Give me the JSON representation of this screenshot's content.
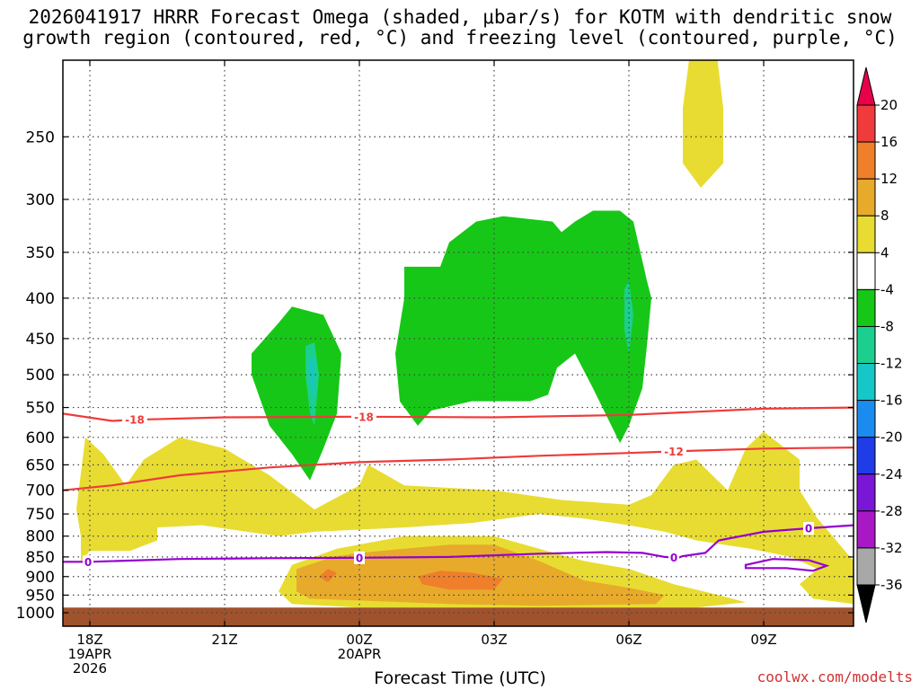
{
  "title": {
    "line1": "2026041917 HRRR Forecast Omega (shaded, μbar/s) for KOTM with dendritic snow",
    "line2": "growth region (contoured, red, °C) and freezing level (contoured, purple, °C)"
  },
  "credit": "coolwx.com/modelts",
  "colors": {
    "ground": "#a0522d",
    "dendritic_contour": "#ef3b3b",
    "freezing_contour": "#9400d3",
    "omega_pos_4_8": "#e8dc32",
    "omega_pos_8_12": "#e8aa2a",
    "omega_pos_12_16": "#ef7f2a",
    "omega_neg_4_8": "#17c717",
    "omega_neg_8_12": "#1ccf8f",
    "omega_neg_12_16": "#17c7c7"
  },
  "chart_data": {
    "type": "heatmap",
    "title": "2026041917 HRRR Forecast Omega (shaded, μbar/s) for KOTM with dendritic snow growth region (contoured, red, °C) and freezing level (contoured, purple, °C)",
    "xlabel": "Forecast Time (UTC)",
    "ylabel": "",
    "x_ticks": [
      {
        "hour": 0,
        "label": [
          "18Z",
          "19APR",
          "2026"
        ]
      },
      {
        "hour": 3,
        "label": [
          "21Z"
        ]
      },
      {
        "hour": 6,
        "label": [
          "00Z",
          "20APR"
        ]
      },
      {
        "hour": 9,
        "label": [
          "03Z"
        ]
      },
      {
        "hour": 12,
        "label": [
          "06Z"
        ]
      },
      {
        "hour": 15,
        "label": [
          "09Z"
        ]
      }
    ],
    "xlim": [
      -0.6,
      17.0
    ],
    "y_scale": "log-pressure (inverted)",
    "ylim_hPa": [
      1040,
      200
    ],
    "y_ticks": [
      250,
      300,
      350,
      400,
      450,
      500,
      550,
      600,
      650,
      700,
      750,
      800,
      850,
      900,
      950,
      1000
    ],
    "grid": true,
    "colorbar": {
      "labels": [
        20,
        16,
        12,
        8,
        4,
        -4,
        -8,
        -12,
        -16,
        -20,
        -24,
        -28,
        -32,
        -36
      ],
      "colors": [
        "#e8004a",
        "#ef3b3b",
        "#ef7f2a",
        "#e8aa2a",
        "#e8dc32",
        "#ffffff",
        "#17c717",
        "#1ccf8f",
        "#17c7c7",
        "#1a8cef",
        "#1f3ce6",
        "#7a16d6",
        "#a818c4",
        "#a8a8a8",
        "#000000"
      ]
    },
    "ground_level_hPa": 985,
    "shaded_regions": [
      {
        "name": "",
        "bin": "4 to 8",
        "color": "#e8dc32",
        "points": [
          [
            -0.6,
            862
          ],
          [
            -0.2,
            862
          ],
          [
            -0.2,
            800
          ],
          [
            -0.3,
            740
          ],
          [
            -0.1,
            600
          ],
          [
            0.3,
            630
          ],
          [
            0.8,
            690
          ],
          [
            1.2,
            640
          ],
          [
            2.0,
            600
          ],
          [
            3.0,
            620
          ],
          [
            4.0,
            670
          ],
          [
            5.0,
            740
          ],
          [
            6.0,
            690
          ],
          [
            6.2,
            650
          ],
          [
            7.0,
            690
          ],
          [
            9.0,
            700
          ],
          [
            10.5,
            720
          ],
          [
            12.0,
            730
          ],
          [
            12.5,
            710
          ],
          [
            13.0,
            650
          ],
          [
            13.5,
            640
          ],
          [
            14.2,
            700
          ],
          [
            14.6,
            620
          ],
          [
            15.0,
            590
          ],
          [
            15.8,
            640
          ],
          [
            15.8,
            700
          ],
          [
            16.2,
            760
          ],
          [
            17.0,
            860
          ],
          [
            17.0,
            975
          ],
          [
            16.1,
            960
          ],
          [
            15.8,
            920
          ],
          [
            16.2,
            880
          ],
          [
            15.6,
            850
          ],
          [
            14.7,
            830
          ],
          [
            13.5,
            810
          ],
          [
            12.8,
            790
          ],
          [
            12.0,
            775
          ],
          [
            11.0,
            760
          ],
          [
            10.0,
            750
          ],
          [
            8.5,
            770
          ],
          [
            7.0,
            780
          ],
          [
            5.0,
            790
          ],
          [
            4.2,
            800
          ],
          [
            3.5,
            790
          ],
          [
            2.5,
            775
          ],
          [
            1.5,
            780
          ],
          [
            1.5,
            810
          ],
          [
            0.9,
            835
          ],
          [
            0.0,
            835
          ],
          [
            -0.2,
            862
          ],
          [
            -0.6,
            862
          ]
        ]
      },
      {
        "name": "",
        "bin": "4 to 8",
        "color": "#e8dc32",
        "points": [
          [
            13.5,
            170
          ],
          [
            13.8,
            165
          ],
          [
            14.1,
            230
          ],
          [
            14.1,
            270
          ],
          [
            13.6,
            290
          ],
          [
            13.2,
            270
          ],
          [
            13.2,
            230
          ],
          [
            13.5,
            170
          ]
        ]
      },
      {
        "name": "",
        "bin": "4 to 8",
        "color": "#e8dc32",
        "points": [
          [
            4.5,
            870
          ],
          [
            5.5,
            830
          ],
          [
            7.0,
            800
          ],
          [
            9.0,
            800
          ],
          [
            10.0,
            830
          ],
          [
            11.0,
            860
          ],
          [
            12.0,
            880
          ],
          [
            13.0,
            920
          ],
          [
            14.0,
            950
          ],
          [
            14.6,
            970
          ],
          [
            13.5,
            985
          ],
          [
            12.0,
            985
          ],
          [
            10.0,
            985
          ],
          [
            8.0,
            985
          ],
          [
            6.0,
            985
          ],
          [
            4.5,
            975
          ],
          [
            4.2,
            940
          ],
          [
            4.5,
            870
          ]
        ]
      },
      {
        "name": "",
        "bin": "8 to 12",
        "color": "#e8aa2a",
        "points": [
          [
            4.6,
            940
          ],
          [
            4.6,
            880
          ],
          [
            5.4,
            850
          ],
          [
            6.0,
            840
          ],
          [
            7.0,
            830
          ],
          [
            8.0,
            820
          ],
          [
            9.0,
            820
          ],
          [
            10.0,
            860
          ],
          [
            11.0,
            910
          ],
          [
            12.0,
            930
          ],
          [
            12.8,
            950
          ],
          [
            12.6,
            975
          ],
          [
            10.0,
            980
          ],
          [
            8.0,
            975
          ],
          [
            6.0,
            965
          ],
          [
            4.9,
            960
          ],
          [
            4.6,
            940
          ]
        ]
      },
      {
        "name": "",
        "bin": "12 to 16",
        "color": "#ef7f2a",
        "points": [
          [
            5.1,
            900
          ],
          [
            5.3,
            880
          ],
          [
            5.5,
            890
          ],
          [
            5.3,
            915
          ],
          [
            5.1,
            900
          ]
        ]
      },
      {
        "name": "",
        "bin": "12 to 16",
        "color": "#ef7f2a",
        "points": [
          [
            7.3,
            900
          ],
          [
            7.8,
            885
          ],
          [
            8.5,
            890
          ],
          [
            9.2,
            905
          ],
          [
            9.0,
            935
          ],
          [
            8.0,
            935
          ],
          [
            7.4,
            920
          ],
          [
            7.3,
            900
          ]
        ]
      },
      {
        "name": "",
        "bin": "-4 to -8",
        "color": "#17c717",
        "points": [
          [
            3.6,
            470
          ],
          [
            4.2,
            430
          ],
          [
            4.5,
            410
          ],
          [
            5.2,
            420
          ],
          [
            5.6,
            470
          ],
          [
            5.5,
            560
          ],
          [
            5.2,
            620
          ],
          [
            4.9,
            680
          ],
          [
            4.5,
            630
          ],
          [
            4.0,
            580
          ],
          [
            3.6,
            500
          ],
          [
            3.6,
            470
          ]
        ]
      },
      {
        "name": "",
        "bin": "-4 to -8",
        "color": "#17c717",
        "points": [
          [
            7.0,
            365
          ],
          [
            7.8,
            365
          ],
          [
            8.0,
            340
          ],
          [
            8.6,
            320
          ],
          [
            9.2,
            315
          ],
          [
            10.3,
            320
          ],
          [
            10.5,
            330
          ],
          [
            10.8,
            320
          ],
          [
            11.2,
            310
          ],
          [
            11.8,
            310
          ],
          [
            12.1,
            320
          ],
          [
            12.4,
            380
          ],
          [
            12.5,
            400
          ],
          [
            12.4,
            460
          ],
          [
            12.3,
            520
          ],
          [
            12.0,
            580
          ],
          [
            11.8,
            610
          ],
          [
            11.2,
            520
          ],
          [
            10.8,
            470
          ],
          [
            10.4,
            490
          ],
          [
            10.2,
            530
          ],
          [
            9.8,
            540
          ],
          [
            8.5,
            540
          ],
          [
            7.6,
            555
          ],
          [
            7.3,
            580
          ],
          [
            6.9,
            540
          ],
          [
            6.8,
            470
          ],
          [
            7.0,
            400
          ],
          [
            7.0,
            365
          ]
        ]
      },
      {
        "name": "",
        "bin": "-8 to -12",
        "color": "#1ccf8f",
        "points": [
          [
            4.8,
            460
          ],
          [
            5.0,
            455
          ],
          [
            5.1,
            500
          ],
          [
            5.0,
            580
          ],
          [
            4.9,
            560
          ],
          [
            4.8,
            500
          ],
          [
            4.8,
            460
          ]
        ]
      },
      {
        "name": "",
        "bin": "-8 to -12",
        "color": "#1ccf8f",
        "points": [
          [
            11.9,
            390
          ],
          [
            12.0,
            380
          ],
          [
            12.1,
            420
          ],
          [
            12.0,
            470
          ],
          [
            11.9,
            440
          ],
          [
            11.9,
            390
          ]
        ]
      },
      {
        "name": "",
        "bin": "-12 to -16",
        "color": "#17c7c7",
        "points": [
          [
            4.9,
            480
          ],
          [
            5.0,
            475
          ],
          [
            5.0,
            540
          ],
          [
            4.9,
            510
          ],
          [
            4.9,
            480
          ]
        ]
      }
    ],
    "contours": [
      {
        "name": "",
        "type": "dendritic",
        "value": -18,
        "label_hours": [
          1.0,
          6.1
        ],
        "points": [
          [
            -0.6,
            560
          ],
          [
            0.5,
            572
          ],
          [
            1.0,
            570
          ],
          [
            3.0,
            566
          ],
          [
            6.0,
            565
          ],
          [
            9.0,
            566
          ],
          [
            12.0,
            562
          ],
          [
            15.0,
            552
          ],
          [
            17.0,
            550
          ]
        ]
      },
      {
        "name": "",
        "type": "dendritic",
        "value": -12,
        "label_hours": [
          13.0
        ],
        "points": [
          [
            -0.6,
            700
          ],
          [
            0.5,
            690
          ],
          [
            2.0,
            670
          ],
          [
            4.0,
            655
          ],
          [
            6.0,
            645
          ],
          [
            8.0,
            640
          ],
          [
            10.0,
            633
          ],
          [
            12.0,
            628
          ],
          [
            13.0,
            625
          ],
          [
            15.0,
            620
          ],
          [
            17.0,
            618
          ]
        ]
      },
      {
        "name": "",
        "type": "freezing",
        "value": 0,
        "label_hours": [
          -0.04,
          6.0,
          13.0,
          16.0
        ],
        "points": [
          [
            -0.6,
            862
          ],
          [
            0.0,
            862
          ],
          [
            2.0,
            855
          ],
          [
            4.0,
            853
          ],
          [
            6.0,
            852
          ],
          [
            8.0,
            850
          ],
          [
            10.0,
            842
          ],
          [
            11.5,
            838
          ],
          [
            12.3,
            840
          ],
          [
            12.8,
            850
          ],
          [
            13.1,
            852
          ],
          [
            13.2,
            848
          ],
          [
            13.7,
            840
          ],
          [
            14.0,
            810
          ],
          [
            15.0,
            790
          ],
          [
            16.0,
            782
          ],
          [
            17.0,
            775
          ]
        ]
      },
      {
        "name": "",
        "type": "freezing",
        "value": 0,
        "closed": true,
        "label_hours": [],
        "points": [
          [
            14.6,
            870
          ],
          [
            15.2,
            855
          ],
          [
            16.0,
            858
          ],
          [
            16.4,
            872
          ],
          [
            16.1,
            885
          ],
          [
            15.5,
            878
          ],
          [
            14.6,
            878
          ],
          [
            14.6,
            870
          ]
        ]
      }
    ]
  }
}
